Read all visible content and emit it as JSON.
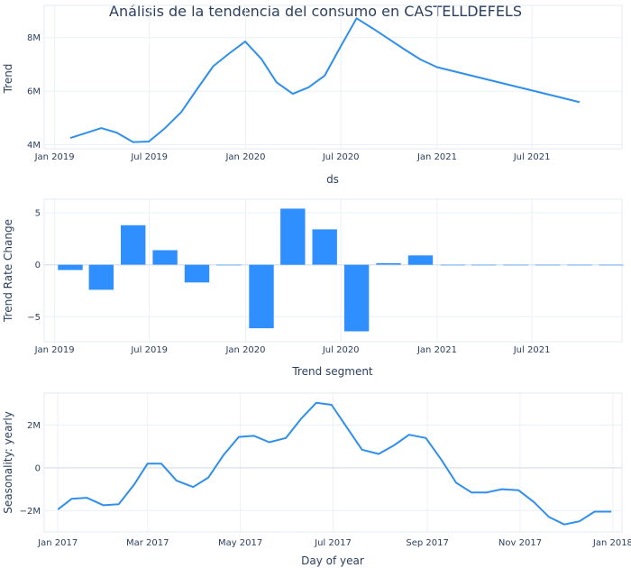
{
  "title": "Análisis de la tendencia del consumo en CASTELLDEFELS",
  "colors": {
    "line": "#2f8fea",
    "bar": "#2f8fff"
  },
  "chart_data": [
    {
      "type": "line",
      "name": "trend",
      "xlabel": "ds",
      "ylabel": "Trend",
      "xlim": [
        "2018-12-12",
        "2021-12-20"
      ],
      "ylim": [
        3850000,
        9200000
      ],
      "x_ticks": [
        {
          "date": "2019-01-01",
          "label": "Jan 2019"
        },
        {
          "date": "2019-07-01",
          "label": "Jul 2019"
        },
        {
          "date": "2020-01-01",
          "label": "Jan 2020"
        },
        {
          "date": "2020-07-01",
          "label": "Jul 2020"
        },
        {
          "date": "2021-01-01",
          "label": "Jan 2021"
        },
        {
          "date": "2021-07-01",
          "label": "Jul 2021"
        }
      ],
      "y_ticks": [
        {
          "value": 4000000,
          "label": "4M"
        },
        {
          "value": 6000000,
          "label": "6M"
        },
        {
          "value": 8000000,
          "label": "8M"
        }
      ],
      "x": [
        "2019-01-31",
        "2019-03-31",
        "2019-04-30",
        "2019-05-31",
        "2019-06-30",
        "2019-07-31",
        "2019-08-31",
        "2019-09-30",
        "2019-10-31",
        "2019-11-30",
        "2019-12-31",
        "2020-01-31",
        "2020-02-29",
        "2020-03-31",
        "2020-04-30",
        "2020-05-31",
        "2020-06-30",
        "2020-07-31",
        "2020-08-31",
        "2020-09-30",
        "2020-10-31",
        "2020-11-30",
        "2020-12-31",
        "2021-09-30"
      ],
      "y": [
        4250000,
        4620000,
        4450000,
        4100000,
        4120000,
        4620000,
        5220000,
        6070000,
        6930000,
        7400000,
        7850000,
        7200000,
        6330000,
        5900000,
        6140000,
        6580000,
        7650000,
        8720000,
        8340000,
        7950000,
        7550000,
        7180000,
        6900000,
        5590000
      ]
    },
    {
      "type": "bar",
      "name": "trend-rate-change",
      "xlabel": "Trend segment",
      "ylabel": "Trend Rate Change",
      "xlim": [
        "2018-12-12",
        "2021-12-20"
      ],
      "ylim": [
        -7.4,
        6.3
      ],
      "x_ticks": [
        {
          "date": "2019-01-01",
          "label": "Jan 2019"
        },
        {
          "date": "2019-07-01",
          "label": "Jul 2019"
        },
        {
          "date": "2020-01-01",
          "label": "Jan 2020"
        },
        {
          "date": "2020-07-01",
          "label": "Jul 2020"
        },
        {
          "date": "2021-01-01",
          "label": "Jan 2021"
        },
        {
          "date": "2021-07-01",
          "label": "Jul 2021"
        }
      ],
      "y_ticks": [
        {
          "value": -5,
          "label": "−5"
        },
        {
          "value": 0,
          "label": "0"
        },
        {
          "value": 5,
          "label": "5"
        }
      ],
      "x": [
        "2019-01-31",
        "2019-03-31",
        "2019-05-31",
        "2019-07-31",
        "2019-09-30",
        "2019-11-30",
        "2020-01-31",
        "2020-03-31",
        "2020-05-31",
        "2020-07-31",
        "2020-09-30",
        "2020-11-30",
        "2021-01-31",
        "2021-03-31",
        "2021-05-31",
        "2021-07-31",
        "2021-09-30",
        "2021-11-30"
      ],
      "values": [
        -0.5,
        -2.4,
        3.8,
        1.4,
        -1.7,
        0,
        -6.1,
        5.4,
        3.4,
        -6.4,
        0.15,
        0.9,
        0,
        0,
        0,
        0,
        0,
        0
      ]
    },
    {
      "type": "line",
      "name": "seasonality-yearly",
      "xlabel": "Day of year",
      "ylabel": "Seasonality: yearly",
      "xlim": [
        "2016-12-23",
        "2018-01-07"
      ],
      "ylim": [
        -3000000,
        3500000
      ],
      "x_ticks": [
        {
          "date": "2017-01-01",
          "label": "Jan 2017"
        },
        {
          "date": "2017-03-01",
          "label": "Mar 2017"
        },
        {
          "date": "2017-05-01",
          "label": "May 2017"
        },
        {
          "date": "2017-07-01",
          "label": "Jul 2017"
        },
        {
          "date": "2017-09-01",
          "label": "Sep 2017"
        },
        {
          "date": "2017-11-01",
          "label": "Nov 2017"
        },
        {
          "date": "2018-01-01",
          "label": "Jan 2018"
        }
      ],
      "y_ticks": [
        {
          "value": -2000000,
          "label": "−2M"
        },
        {
          "value": 0,
          "label": "0"
        },
        {
          "value": 2000000,
          "label": "2M"
        }
      ],
      "x": [
        "2017-01-01",
        "2017-01-10",
        "2017-01-20",
        "2017-01-31",
        "2017-02-10",
        "2017-02-20",
        "2017-03-01",
        "2017-03-10",
        "2017-03-20",
        "2017-03-31",
        "2017-04-10",
        "2017-04-20",
        "2017-04-30",
        "2017-05-10",
        "2017-05-20",
        "2017-05-31",
        "2017-06-10",
        "2017-06-20",
        "2017-06-30",
        "2017-07-10",
        "2017-07-20",
        "2017-07-31",
        "2017-08-10",
        "2017-08-20",
        "2017-08-31",
        "2017-09-10",
        "2017-09-20",
        "2017-09-30",
        "2017-10-10",
        "2017-10-20",
        "2017-10-31",
        "2017-11-10",
        "2017-11-20",
        "2017-11-30",
        "2017-12-10",
        "2017-12-20",
        "2017-12-31"
      ],
      "y": [
        -1950000,
        -1450000,
        -1400000,
        -1750000,
        -1700000,
        -800000,
        200000,
        200000,
        -600000,
        -900000,
        -450000,
        600000,
        1450000,
        1500000,
        1200000,
        1400000,
        2300000,
        3050000,
        2950000,
        1900000,
        850000,
        650000,
        1050000,
        1550000,
        1400000,
        400000,
        -700000,
        -1150000,
        -1150000,
        -1000000,
        -1050000,
        -1600000,
        -2300000,
        -2650000,
        -2500000,
        -2050000,
        -2050000
      ]
    }
  ]
}
